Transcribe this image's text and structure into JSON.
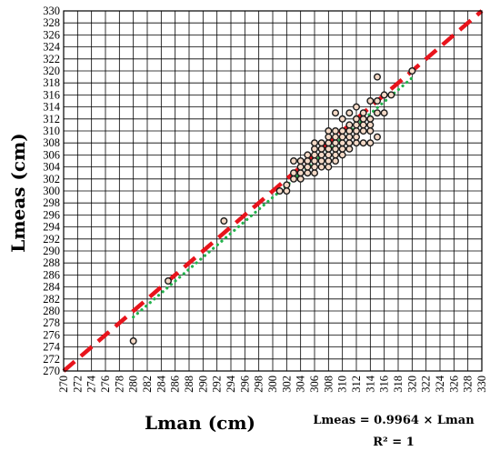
{
  "chart_data": {
    "type": "scatter",
    "xlabel": "Lman (cm)",
    "ylabel": "Lmeas (cm)",
    "xlim": [
      270,
      330
    ],
    "ylim": [
      270,
      330
    ],
    "tick_step": 2,
    "grid": true,
    "x_ticks": [
      "270",
      "272",
      "274",
      "276",
      "278",
      "280",
      "282",
      "284",
      "286",
      "288",
      "290",
      "292",
      "294",
      "296",
      "298",
      "300",
      "302",
      "304",
      "306",
      "308",
      "310",
      "312",
      "314",
      "316",
      "318",
      "320",
      "322",
      "324",
      "326",
      "328",
      "330"
    ],
    "y_ticks": [
      "270",
      "272",
      "274",
      "276",
      "278",
      "280",
      "282",
      "284",
      "286",
      "288",
      "290",
      "292",
      "294",
      "296",
      "298",
      "300",
      "302",
      "304",
      "306",
      "308",
      "310",
      "312",
      "314",
      "316",
      "318",
      "320",
      "322",
      "324",
      "326",
      "328",
      "330"
    ],
    "annotations": [
      "Lmeas = 0.9964 × Lman",
      "R² = 1"
    ],
    "series": [
      {
        "kind": "points",
        "marker": "circle",
        "color": "#1a1a1a",
        "fill": "#f4d9c6",
        "points": [
          [
            280,
            275
          ],
          [
            285,
            285
          ],
          [
            293,
            295
          ],
          [
            301,
            300
          ],
          [
            302,
            300
          ],
          [
            302,
            301
          ],
          [
            303,
            302
          ],
          [
            303,
            303
          ],
          [
            303,
            305
          ],
          [
            304,
            302
          ],
          [
            304,
            303
          ],
          [
            304,
            304
          ],
          [
            304,
            305
          ],
          [
            305,
            303
          ],
          [
            305,
            304
          ],
          [
            305,
            305
          ],
          [
            305,
            306
          ],
          [
            306,
            303
          ],
          [
            306,
            304
          ],
          [
            306,
            305
          ],
          [
            306,
            306
          ],
          [
            306,
            307
          ],
          [
            306,
            308
          ],
          [
            307,
            304
          ],
          [
            307,
            305
          ],
          [
            307,
            306
          ],
          [
            307,
            307
          ],
          [
            307,
            308
          ],
          [
            308,
            304
          ],
          [
            308,
            305
          ],
          [
            308,
            306
          ],
          [
            308,
            307
          ],
          [
            308,
            308
          ],
          [
            308,
            309
          ],
          [
            308,
            310
          ],
          [
            309,
            305
          ],
          [
            309,
            306
          ],
          [
            309,
            307
          ],
          [
            309,
            308
          ],
          [
            309,
            309
          ],
          [
            309,
            310
          ],
          [
            309,
            313
          ],
          [
            310,
            306
          ],
          [
            310,
            307
          ],
          [
            310,
            308
          ],
          [
            310,
            309
          ],
          [
            310,
            310
          ],
          [
            310,
            312
          ],
          [
            311,
            307
          ],
          [
            311,
            308
          ],
          [
            311,
            309
          ],
          [
            311,
            310
          ],
          [
            311,
            311
          ],
          [
            311,
            313
          ],
          [
            312,
            308
          ],
          [
            312,
            309
          ],
          [
            312,
            310
          ],
          [
            312,
            311
          ],
          [
            312,
            312
          ],
          [
            312,
            314
          ],
          [
            313,
            308
          ],
          [
            313,
            310
          ],
          [
            313,
            311
          ],
          [
            313,
            312
          ],
          [
            313,
            313
          ],
          [
            314,
            308
          ],
          [
            314,
            310
          ],
          [
            314,
            311
          ],
          [
            314,
            312
          ],
          [
            314,
            315
          ],
          [
            315,
            309
          ],
          [
            315,
            313
          ],
          [
            315,
            315
          ],
          [
            315,
            319
          ],
          [
            316,
            313
          ],
          [
            316,
            316
          ],
          [
            317,
            316
          ],
          [
            320,
            320
          ]
        ]
      },
      {
        "kind": "line",
        "style": "dashed",
        "color": "#e8141c",
        "slope": 1,
        "intercept": 0,
        "x_range": [
          270,
          330
        ]
      },
      {
        "kind": "line",
        "style": "dotted",
        "color": "#22b24c",
        "slope": 0.9964,
        "intercept": 0,
        "x_range": [
          280,
          320
        ]
      }
    ]
  }
}
